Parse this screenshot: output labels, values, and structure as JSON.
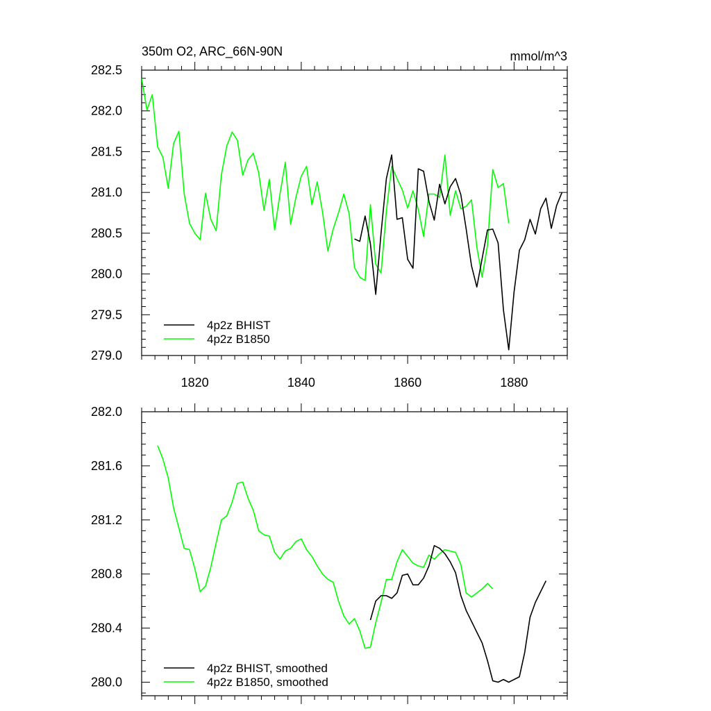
{
  "chart_data": [
    {
      "type": "line",
      "title_left": "350m O2, ARC_66N-90N",
      "title_right": "mmol/m^3",
      "xlabel": "",
      "ylabel": "",
      "xlim": [
        1810,
        1890
      ],
      "ylim": [
        279.0,
        282.5
      ],
      "xticks": [
        1820,
        1840,
        1860,
        1880
      ],
      "yticks": [
        279.0,
        279.5,
        280.0,
        280.5,
        281.0,
        281.5,
        282.0,
        282.5
      ],
      "ytick_labels": [
        "279.0",
        "279.5",
        "280.0",
        "280.5",
        "281.0",
        "281.5",
        "282.0",
        "282.5"
      ],
      "legend_position": "bottom-left",
      "series": [
        {
          "name": "4p2z BHIST",
          "color": "#000000",
          "x": [
            1850,
            1851,
            1852,
            1853,
            1854,
            1855,
            1856,
            1857,
            1858,
            1859,
            1860,
            1861,
            1862,
            1863,
            1864,
            1865,
            1866,
            1867,
            1868,
            1869,
            1870,
            1871,
            1872,
            1873,
            1874,
            1875,
            1876,
            1877,
            1878,
            1879,
            1880,
            1881,
            1882,
            1883,
            1884,
            1885,
            1886,
            1887,
            1888,
            1889
          ],
          "y": [
            280.43,
            280.4,
            280.71,
            280.37,
            279.75,
            280.5,
            281.17,
            281.46,
            280.67,
            280.69,
            280.18,
            280.07,
            281.29,
            281.26,
            280.89,
            280.66,
            281.1,
            280.86,
            281.07,
            281.17,
            280.97,
            280.55,
            280.1,
            279.84,
            280.19,
            280.54,
            280.55,
            280.38,
            279.56,
            279.07,
            279.78,
            280.29,
            280.42,
            280.67,
            280.49,
            280.8,
            280.93,
            280.56,
            280.84,
            281.0
          ]
        },
        {
          "name": "4p2z B1850",
          "color": "#00ff00",
          "x": [
            1810,
            1811,
            1812,
            1813,
            1814,
            1815,
            1816,
            1817,
            1818,
            1819,
            1820,
            1821,
            1822,
            1823,
            1824,
            1825,
            1826,
            1827,
            1828,
            1829,
            1830,
            1831,
            1832,
            1833,
            1834,
            1835,
            1836,
            1837,
            1838,
            1839,
            1840,
            1841,
            1842,
            1843,
            1844,
            1845,
            1846,
            1847,
            1848,
            1849,
            1850,
            1851,
            1852,
            1853,
            1854,
            1855,
            1856,
            1857,
            1858,
            1859,
            1860,
            1861,
            1862,
            1863,
            1864,
            1865,
            1866,
            1867,
            1868,
            1869,
            1870,
            1871,
            1872,
            1873,
            1874,
            1875,
            1876,
            1877,
            1878,
            1879
          ],
          "y": [
            282.4,
            282.01,
            282.2,
            281.56,
            281.43,
            281.05,
            281.6,
            281.75,
            280.98,
            280.62,
            280.5,
            280.42,
            280.99,
            280.67,
            280.53,
            281.22,
            281.57,
            281.74,
            281.64,
            281.21,
            281.4,
            281.48,
            281.24,
            280.78,
            281.16,
            280.54,
            280.98,
            281.37,
            280.61,
            280.94,
            281.2,
            281.32,
            280.85,
            281.13,
            280.76,
            280.28,
            280.55,
            280.75,
            280.98,
            280.74,
            280.08,
            279.96,
            279.92,
            280.85,
            280.12,
            280.01,
            280.77,
            281.32,
            281.17,
            281.03,
            280.81,
            281.02,
            280.79,
            280.46,
            280.98,
            280.98,
            280.94,
            281.46,
            280.72,
            281.02,
            280.8,
            280.83,
            280.91,
            280.33,
            279.96,
            280.35,
            281.28,
            281.06,
            281.11,
            280.62
          ]
        }
      ]
    },
    {
      "type": "line",
      "title_left": "",
      "title_right": "",
      "xlabel": "",
      "ylabel": "",
      "xlim": [
        1810,
        1890
      ],
      "ylim": [
        279.9,
        282.0
      ],
      "xticks": [
        1820,
        1840,
        1860,
        1880
      ],
      "yticks": [
        280.0,
        280.4,
        280.8,
        281.2,
        281.6,
        282.0
      ],
      "ytick_labels": [
        "280.0",
        "280.4",
        "280.8",
        "281.2",
        "281.6",
        "282.0"
      ],
      "legend_position": "bottom-left",
      "series": [
        {
          "name": "4p2z BHIST, smoothed",
          "color": "#000000",
          "x": [
            1853,
            1854,
            1855,
            1856,
            1857,
            1858,
            1859,
            1860,
            1861,
            1862,
            1863,
            1864,
            1865,
            1866,
            1867,
            1868,
            1869,
            1870,
            1871,
            1872,
            1873,
            1874,
            1875,
            1876,
            1877,
            1878,
            1879,
            1880,
            1881,
            1882,
            1883,
            1884,
            1885,
            1886
          ],
          "y": [
            280.46,
            280.6,
            280.64,
            280.64,
            280.62,
            280.66,
            280.79,
            280.8,
            280.72,
            280.72,
            280.77,
            280.86,
            281.01,
            280.99,
            280.95,
            280.89,
            280.81,
            280.64,
            280.53,
            280.45,
            280.37,
            280.29,
            280.16,
            280.01,
            280.0,
            280.02,
            280.0,
            280.02,
            280.04,
            280.22,
            280.48,
            280.59,
            280.67,
            280.75
          ]
        },
        {
          "name": "4p2z B1850, smoothed",
          "color": "#00ff00",
          "x": [
            1813,
            1814,
            1815,
            1816,
            1817,
            1818,
            1819,
            1820,
            1821,
            1822,
            1823,
            1824,
            1825,
            1826,
            1827,
            1828,
            1829,
            1830,
            1831,
            1832,
            1833,
            1834,
            1835,
            1836,
            1837,
            1838,
            1839,
            1840,
            1841,
            1842,
            1843,
            1844,
            1845,
            1846,
            1847,
            1848,
            1849,
            1850,
            1851,
            1852,
            1853,
            1854,
            1855,
            1856,
            1857,
            1858,
            1859,
            1860,
            1861,
            1862,
            1863,
            1864,
            1865,
            1866,
            1867,
            1868,
            1869,
            1870,
            1871,
            1872,
            1873,
            1874,
            1875,
            1876
          ],
          "y": [
            281.75,
            281.65,
            281.51,
            281.29,
            281.14,
            280.99,
            280.98,
            280.84,
            280.67,
            280.71,
            280.85,
            281.03,
            281.2,
            281.23,
            281.33,
            281.47,
            281.48,
            281.36,
            281.27,
            281.12,
            281.09,
            281.08,
            280.96,
            280.91,
            280.97,
            280.99,
            281.04,
            281.06,
            280.98,
            280.93,
            280.86,
            280.8,
            280.76,
            280.74,
            280.6,
            280.49,
            280.43,
            280.47,
            280.38,
            280.25,
            280.26,
            280.44,
            280.59,
            280.76,
            280.76,
            280.89,
            280.98,
            280.93,
            280.88,
            280.86,
            280.85,
            280.94,
            280.91,
            280.95,
            280.98,
            280.97,
            280.96,
            280.87,
            280.66,
            280.63,
            280.66,
            280.69,
            280.73,
            280.69
          ]
        }
      ]
    }
  ]
}
